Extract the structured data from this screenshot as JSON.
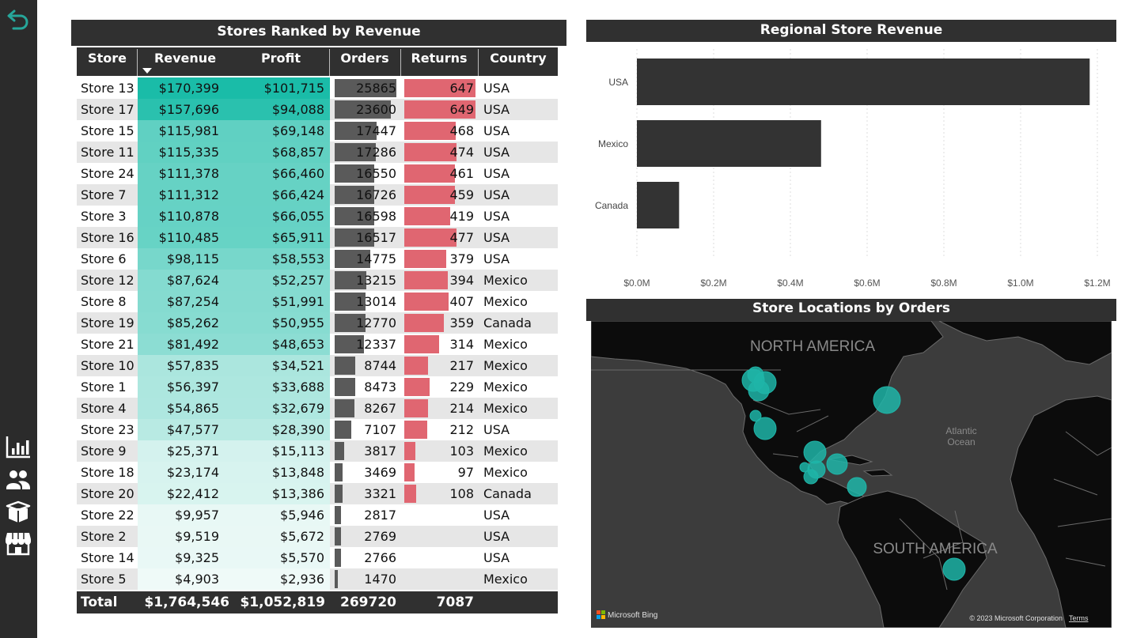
{
  "nav": {
    "icons": [
      "back-arrow-icon",
      "bar-chart-icon",
      "people-icon",
      "box-icon",
      "store-icon"
    ],
    "accent": "#26a69a"
  },
  "table": {
    "title": "Stores Ranked by Revenue",
    "headers": {
      "store": "Store",
      "revenue": "Revenue",
      "profit": "Profit",
      "orders": "Orders",
      "returns": "Returns",
      "country": "Country"
    },
    "rows": [
      {
        "store": "Store 13",
        "revenue": "$170,399",
        "profit": "$101,715",
        "orders": "25865",
        "returns": "647",
        "country": "USA"
      },
      {
        "store": "Store 17",
        "revenue": "$157,696",
        "profit": "$94,088",
        "orders": "23600",
        "returns": "649",
        "country": "USA"
      },
      {
        "store": "Store 15",
        "revenue": "$115,981",
        "profit": "$69,148",
        "orders": "17447",
        "returns": "468",
        "country": "USA"
      },
      {
        "store": "Store 11",
        "revenue": "$115,335",
        "profit": "$68,857",
        "orders": "17286",
        "returns": "474",
        "country": "USA"
      },
      {
        "store": "Store 24",
        "revenue": "$111,378",
        "profit": "$66,460",
        "orders": "16550",
        "returns": "461",
        "country": "USA"
      },
      {
        "store": "Store 7",
        "revenue": "$111,312",
        "profit": "$66,424",
        "orders": "16726",
        "returns": "459",
        "country": "USA"
      },
      {
        "store": "Store 3",
        "revenue": "$110,878",
        "profit": "$66,055",
        "orders": "16598",
        "returns": "419",
        "country": "USA"
      },
      {
        "store": "Store 16",
        "revenue": "$110,485",
        "profit": "$65,911",
        "orders": "16517",
        "returns": "477",
        "country": "USA"
      },
      {
        "store": "Store 6",
        "revenue": "$98,115",
        "profit": "$58,553",
        "orders": "14775",
        "returns": "379",
        "country": "USA"
      },
      {
        "store": "Store 12",
        "revenue": "$87,624",
        "profit": "$52,257",
        "orders": "13215",
        "returns": "394",
        "country": "Mexico"
      },
      {
        "store": "Store 8",
        "revenue": "$87,254",
        "profit": "$51,991",
        "orders": "13014",
        "returns": "407",
        "country": "Mexico"
      },
      {
        "store": "Store 19",
        "revenue": "$85,262",
        "profit": "$50,955",
        "orders": "12770",
        "returns": "359",
        "country": "Canada"
      },
      {
        "store": "Store 21",
        "revenue": "$81,492",
        "profit": "$48,653",
        "orders": "12337",
        "returns": "314",
        "country": "Mexico"
      },
      {
        "store": "Store 10",
        "revenue": "$57,835",
        "profit": "$34,521",
        "orders": "8744",
        "returns": "217",
        "country": "Mexico"
      },
      {
        "store": "Store 1",
        "revenue": "$56,397",
        "profit": "$33,688",
        "orders": "8473",
        "returns": "229",
        "country": "Mexico"
      },
      {
        "store": "Store 4",
        "revenue": "$54,865",
        "profit": "$32,679",
        "orders": "8267",
        "returns": "214",
        "country": "Mexico"
      },
      {
        "store": "Store 23",
        "revenue": "$47,577",
        "profit": "$28,390",
        "orders": "7107",
        "returns": "212",
        "country": "USA"
      },
      {
        "store": "Store 9",
        "revenue": "$25,371",
        "profit": "$15,113",
        "orders": "3817",
        "returns": "103",
        "country": "Mexico"
      },
      {
        "store": "Store 18",
        "revenue": "$23,174",
        "profit": "$13,848",
        "orders": "3469",
        "returns": "97",
        "country": "Mexico"
      },
      {
        "store": "Store 20",
        "revenue": "$22,412",
        "profit": "$13,386",
        "orders": "3321",
        "returns": "108",
        "country": "Canada"
      },
      {
        "store": "Store 22",
        "revenue": "$9,957",
        "profit": "$5,946",
        "orders": "2817",
        "returns": "",
        "country": "USA"
      },
      {
        "store": "Store 2",
        "revenue": "$9,519",
        "profit": "$5,672",
        "orders": "2769",
        "returns": "",
        "country": "USA"
      },
      {
        "store": "Store 14",
        "revenue": "$9,325",
        "profit": "$5,570",
        "orders": "2766",
        "returns": "",
        "country": "USA"
      },
      {
        "store": "Store 5",
        "revenue": "$4,903",
        "profit": "$2,936",
        "orders": "1470",
        "returns": "",
        "country": "Mexico"
      }
    ],
    "total": {
      "label": "Total",
      "revenue": "$1,764,546",
      "profit": "$1,052,819",
      "orders": "269720",
      "returns": "7087"
    },
    "colors": {
      "revenue_scale": [
        "#ffffff",
        "#1abc9c"
      ],
      "orders_bar": "#5a5a5a",
      "returns_bar": "#e06671"
    }
  },
  "bar_chart": {
    "title": "Regional Store Revenue"
  },
  "chart_data": {
    "type": "bar",
    "orientation": "horizontal",
    "categories": [
      "USA",
      "Mexico",
      "Canada"
    ],
    "values": [
      1.18,
      0.48,
      0.11
    ],
    "xlim": [
      0,
      1.2
    ],
    "ticks": [
      "$0.0M",
      "$0.2M",
      "$0.4M",
      "$0.6M",
      "$0.8M",
      "$1.0M",
      "$1.2M"
    ],
    "tick_values": [
      0,
      0.2,
      0.4,
      0.6,
      0.8,
      1.0,
      1.2
    ],
    "grid": true,
    "bar_color": "#333333"
  },
  "map": {
    "title": "Store Locations by Orders",
    "labels": {
      "north_america": "NORTH AMERICA",
      "south_america": "SOUTH AMERICA",
      "ocean_1": "Atlantic",
      "ocean_2": "Ocean"
    },
    "provider": "Microsoft Bing",
    "copyright": "© 2023 Microsoft Corporation",
    "terms": "Terms",
    "bubble_color": "#1fb5a8"
  }
}
